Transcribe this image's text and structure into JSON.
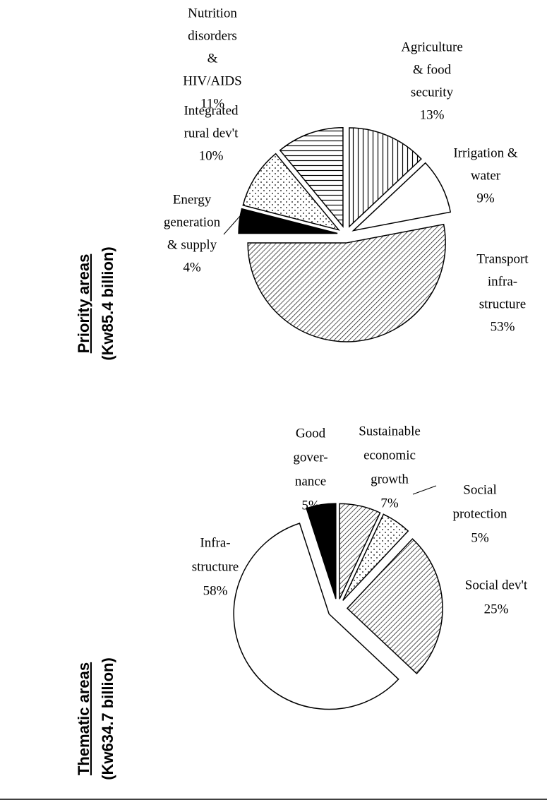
{
  "chart_data": [
    {
      "type": "pie",
      "title": "Priority areas",
      "subtitle": "(Kw85.4 billion)",
      "categories": [
        [
          "Agriculture",
          "& food",
          "security"
        ],
        [
          "Irrigation &",
          "water"
        ],
        [
          "Transport",
          "infra-",
          "structure"
        ],
        [
          "Energy",
          "generation",
          "& supply"
        ],
        [
          "Integrated",
          "rural dev't"
        ],
        [
          "Nutrition",
          "disorders",
          "&",
          "HIV/AIDS"
        ]
      ],
      "values": [
        13,
        9,
        53,
        4,
        10,
        11
      ],
      "value_labels": [
        "13%",
        "9%",
        "53%",
        "4%",
        "10%",
        "11%"
      ],
      "patterns": [
        "vertical",
        "white",
        "diagonal",
        "black",
        "dots",
        "horizontal"
      ]
    },
    {
      "type": "pie",
      "title": "Thematic areas",
      "subtitle": "(Kw634.7 billion)",
      "categories": [
        [
          "Sustainable",
          "economic",
          "growth"
        ],
        [
          "Social",
          "protection"
        ],
        [
          "Social dev't"
        ],
        [
          "Infra-",
          "structure"
        ],
        [
          "Good",
          "gover-",
          "nance"
        ]
      ],
      "values": [
        7,
        5,
        25,
        58,
        5
      ],
      "value_labels": [
        "7%",
        "5%",
        "25%",
        "58%",
        "5%"
      ],
      "patterns": [
        "diagonal",
        "dots",
        "diagonal",
        "white",
        "black"
      ]
    }
  ]
}
